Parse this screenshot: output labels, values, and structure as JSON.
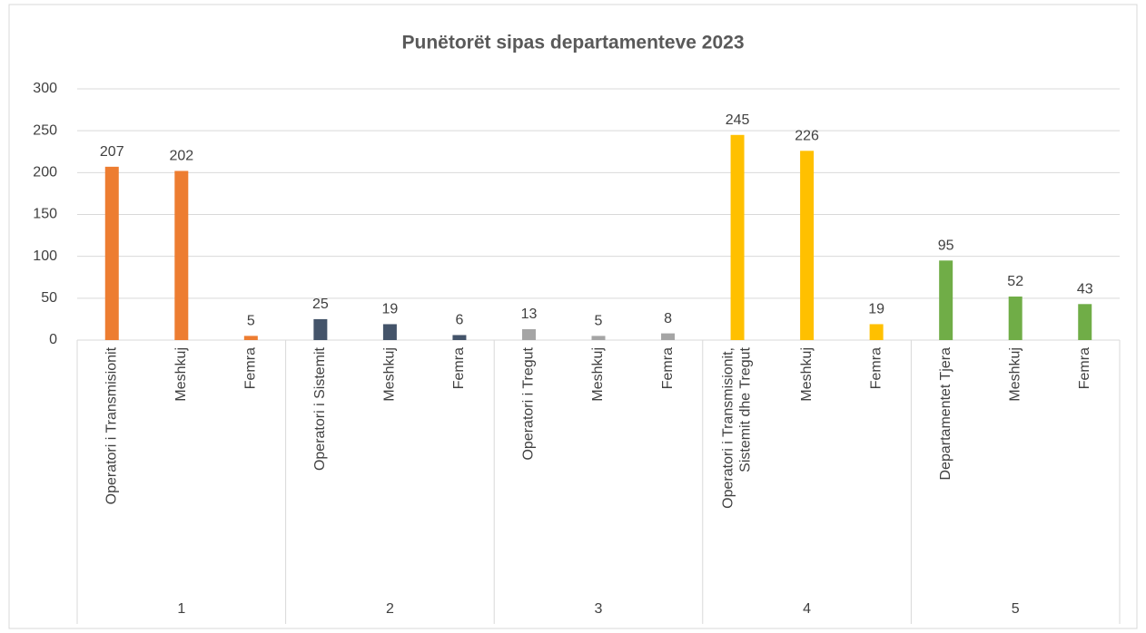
{
  "chart_data": {
    "type": "bar",
    "title": "Punëtorët sipas departamenteve 2023",
    "groups": [
      {
        "label": "1",
        "color": "#ed7d31",
        "categories": [
          "Operatori i Transmisionit",
          "Meshkuj",
          "Femra"
        ],
        "values": [
          207,
          202,
          5
        ]
      },
      {
        "label": "2",
        "color": "#44546a",
        "categories": [
          "Operatori i Sistemit",
          "Meshkuj",
          "Femra"
        ],
        "values": [
          25,
          19,
          6
        ]
      },
      {
        "label": "3",
        "color": "#a5a5a5",
        "categories": [
          "Operatori i Tregut",
          "Meshkuj",
          "Femra"
        ],
        "values": [
          13,
          5,
          8
        ]
      },
      {
        "label": "4",
        "color": "#ffc000",
        "categories": [
          "Operatori i Transmisionit, Sistemit dhe Tregut",
          "Meshkuj",
          "Femra"
        ],
        "values": [
          245,
          226,
          19
        ]
      },
      {
        "label": "5",
        "color": "#70ad47",
        "categories": [
          "Departamentet Tjera",
          "Meshkuj",
          "Femra"
        ],
        "values": [
          95,
          52,
          43
        ]
      }
    ],
    "ylim": [
      0,
      300
    ],
    "yticks": [
      0,
      50,
      100,
      150,
      200,
      250,
      300
    ],
    "grid": true
  }
}
